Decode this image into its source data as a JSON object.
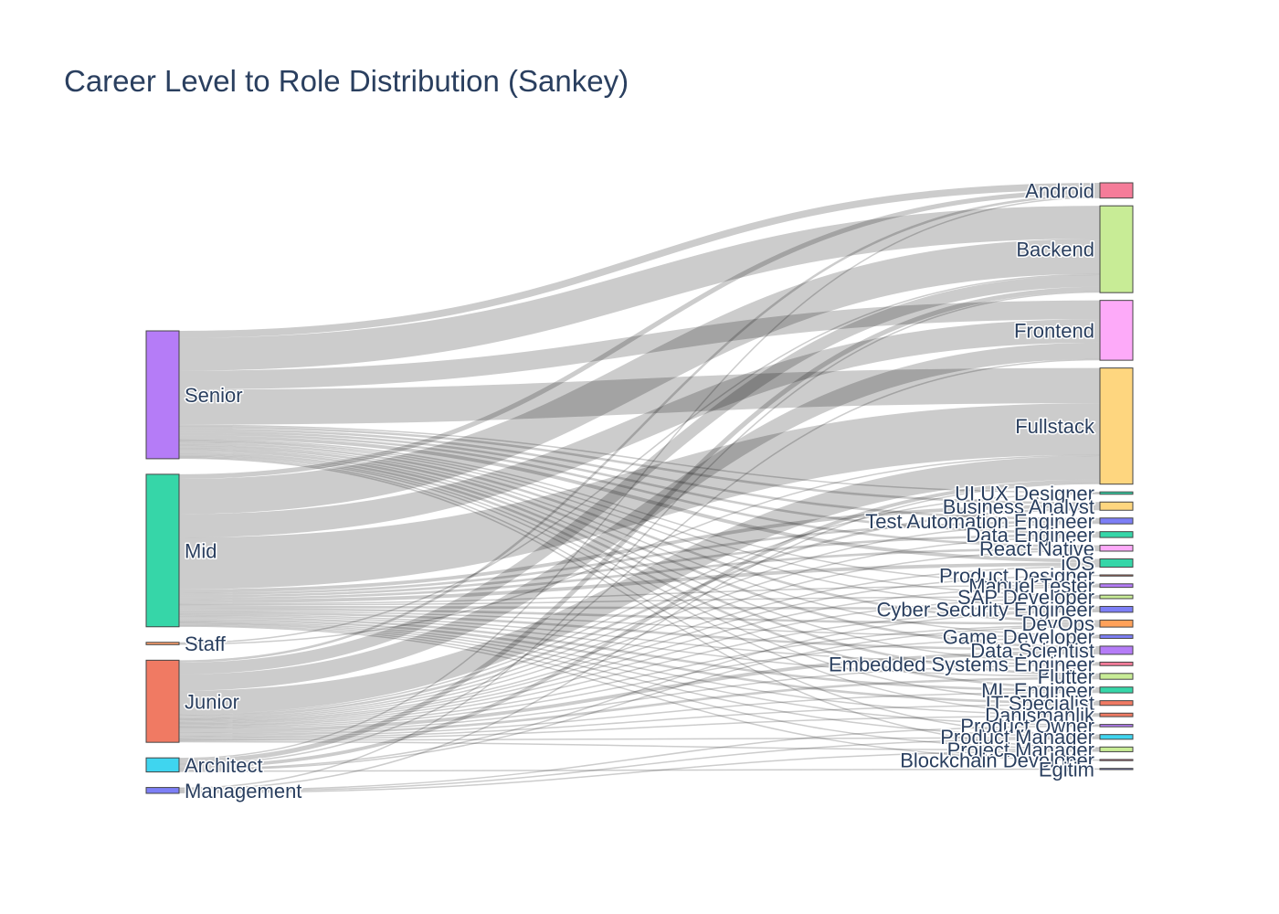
{
  "chart_data": {
    "type": "sankey",
    "title": "Career Level to Role Distribution (Sankey)",
    "sources": [
      {
        "name": "Senior",
        "color": "#b57cf7"
      },
      {
        "name": "Mid",
        "color": "#36d6a8"
      },
      {
        "name": "Staff",
        "color": "#ff9f6b"
      },
      {
        "name": "Junior",
        "color": "#f07a63"
      },
      {
        "name": "Architect",
        "color": "#3fd5ef"
      },
      {
        "name": "Management",
        "color": "#7d7ff6"
      }
    ],
    "targets": [
      {
        "name": "Android",
        "color": "#f57c99"
      },
      {
        "name": "Backend",
        "color": "#c8ec96"
      },
      {
        "name": "Frontend",
        "color": "#fdaaf9"
      },
      {
        "name": "Fullstack",
        "color": "#fed67f"
      },
      {
        "name": "UI UX Designer",
        "color": "#36d6a8"
      },
      {
        "name": "Business Analyst",
        "color": "#fed67f"
      },
      {
        "name": "Test Automation Engineer",
        "color": "#7d7ff6"
      },
      {
        "name": "Data Engineer",
        "color": "#36d6a8"
      },
      {
        "name": "React Native",
        "color": "#fdaaf9"
      },
      {
        "name": "iOS",
        "color": "#36d6a8"
      },
      {
        "name": "Product Designer",
        "color": "#f07a63"
      },
      {
        "name": "Manuel Tester",
        "color": "#b57cf7"
      },
      {
        "name": "SAP Developer",
        "color": "#c8ec96"
      },
      {
        "name": "Cyber Security Engineer",
        "color": "#7d7ff6"
      },
      {
        "name": "DevOps",
        "color": "#ffa15a"
      },
      {
        "name": "Game Developer",
        "color": "#7d7ff6"
      },
      {
        "name": "Data Scientist",
        "color": "#b57cf7"
      },
      {
        "name": "Embedded Systems Engineer",
        "color": "#f57c99"
      },
      {
        "name": "Flutter",
        "color": "#c8ec96"
      },
      {
        "name": "ML Engineer",
        "color": "#36d6a8"
      },
      {
        "name": "IT Specialist",
        "color": "#f07a63"
      },
      {
        "name": "Danismanlik",
        "color": "#f07a63"
      },
      {
        "name": "Product Owner",
        "color": "#b57cf7"
      },
      {
        "name": "Product Manager",
        "color": "#3fd5ef"
      },
      {
        "name": "Project Manager",
        "color": "#c8ec96"
      },
      {
        "name": "Blockchain Developer",
        "color": "#f57c99"
      },
      {
        "name": "Egitim",
        "color": "#7d7ff6"
      }
    ],
    "links": [
      {
        "source": "Senior",
        "target": "Android",
        "value": 6
      },
      {
        "source": "Senior",
        "target": "Backend",
        "value": 28
      },
      {
        "source": "Senior",
        "target": "Frontend",
        "value": 16
      },
      {
        "source": "Senior",
        "target": "Fullstack",
        "value": 30
      },
      {
        "source": "Senior",
        "target": "UI UX Designer",
        "value": 1
      },
      {
        "source": "Senior",
        "target": "Business Analyst",
        "value": 2
      },
      {
        "source": "Senior",
        "target": "Test Automation Engineer",
        "value": 2
      },
      {
        "source": "Senior",
        "target": "Data Engineer",
        "value": 2
      },
      {
        "source": "Senior",
        "target": "React Native",
        "value": 2
      },
      {
        "source": "Senior",
        "target": "iOS",
        "value": 3
      },
      {
        "source": "Senior",
        "target": "Manuel Tester",
        "value": 1
      },
      {
        "source": "Senior",
        "target": "SAP Developer",
        "value": 1
      },
      {
        "source": "Senior",
        "target": "Cyber Security Engineer",
        "value": 1
      },
      {
        "source": "Senior",
        "target": "DevOps",
        "value": 2
      },
      {
        "source": "Senior",
        "target": "Game Developer",
        "value": 1
      },
      {
        "source": "Senior",
        "target": "Data Scientist",
        "value": 2
      },
      {
        "source": "Senior",
        "target": "Embedded Systems Engineer",
        "value": 1
      },
      {
        "source": "Senior",
        "target": "Flutter",
        "value": 2
      },
      {
        "source": "Senior",
        "target": "ML Engineer",
        "value": 2
      },
      {
        "source": "Senior",
        "target": "IT Specialist",
        "value": 1
      },
      {
        "source": "Senior",
        "target": "Danismanlik",
        "value": 1
      },
      {
        "source": "Senior",
        "target": "Product Manager",
        "value": 1
      },
      {
        "source": "Senior",
        "target": "Project Manager",
        "value": 1
      },
      {
        "source": "Mid",
        "target": "Android",
        "value": 4
      },
      {
        "source": "Mid",
        "target": "Backend",
        "value": 30
      },
      {
        "source": "Mid",
        "target": "Frontend",
        "value": 20
      },
      {
        "source": "Mid",
        "target": "Fullstack",
        "value": 44
      },
      {
        "source": "Mid",
        "target": "Business Analyst",
        "value": 3
      },
      {
        "source": "Mid",
        "target": "Test Automation Engineer",
        "value": 2
      },
      {
        "source": "Mid",
        "target": "Data Engineer",
        "value": 2
      },
      {
        "source": "Mid",
        "target": "React Native",
        "value": 2
      },
      {
        "source": "Mid",
        "target": "iOS",
        "value": 3
      },
      {
        "source": "Mid",
        "target": "Manuel Tester",
        "value": 1
      },
      {
        "source": "Mid",
        "target": "SAP Developer",
        "value": 1
      },
      {
        "source": "Mid",
        "target": "Cyber Security Engineer",
        "value": 2
      },
      {
        "source": "Mid",
        "target": "DevOps",
        "value": 2
      },
      {
        "source": "Mid",
        "target": "Game Developer",
        "value": 1
      },
      {
        "source": "Mid",
        "target": "Data Scientist",
        "value": 2
      },
      {
        "source": "Mid",
        "target": "Embedded Systems Engineer",
        "value": 1
      },
      {
        "source": "Mid",
        "target": "Flutter",
        "value": 1
      },
      {
        "source": "Mid",
        "target": "ML Engineer",
        "value": 2
      },
      {
        "source": "Mid",
        "target": "IT Specialist",
        "value": 2
      },
      {
        "source": "Mid",
        "target": "Danismanlik",
        "value": 1
      },
      {
        "source": "Mid",
        "target": "Product Owner",
        "value": 1
      },
      {
        "source": "Mid",
        "target": "Product Manager",
        "value": 1
      },
      {
        "source": "Mid",
        "target": "Project Manager",
        "value": 1
      },
      {
        "source": "Mid",
        "target": "Blockchain Developer",
        "value": 1
      },
      {
        "source": "Staff",
        "target": "Backend",
        "value": 1
      },
      {
        "source": "Staff",
        "target": "Fullstack",
        "value": 1
      },
      {
        "source": "Junior",
        "target": "Android",
        "value": 2
      },
      {
        "source": "Junior",
        "target": "Backend",
        "value": 10
      },
      {
        "source": "Junior",
        "target": "Frontend",
        "value": 14
      },
      {
        "source": "Junior",
        "target": "Fullstack",
        "value": 20
      },
      {
        "source": "Junior",
        "target": "UI UX Designer",
        "value": 1
      },
      {
        "source": "Junior",
        "target": "Business Analyst",
        "value": 2
      },
      {
        "source": "Junior",
        "target": "Test Automation Engineer",
        "value": 1
      },
      {
        "source": "Junior",
        "target": "Data Engineer",
        "value": 1
      },
      {
        "source": "Junior",
        "target": "React Native",
        "value": 1
      },
      {
        "source": "Junior",
        "target": "iOS",
        "value": 1
      },
      {
        "source": "Junior",
        "target": "Product Designer",
        "value": 1
      },
      {
        "source": "Junior",
        "target": "Manuel Tester",
        "value": 1
      },
      {
        "source": "Junior",
        "target": "SAP Developer",
        "value": 1
      },
      {
        "source": "Junior",
        "target": "Cyber Security Engineer",
        "value": 1
      },
      {
        "source": "Junior",
        "target": "DevOps",
        "value": 1
      },
      {
        "source": "Junior",
        "target": "Game Developer",
        "value": 1
      },
      {
        "source": "Junior",
        "target": "Data Scientist",
        "value": 3
      },
      {
        "source": "Junior",
        "target": "Embedded Systems Engineer",
        "value": 1
      },
      {
        "source": "Junior",
        "target": "Flutter",
        "value": 2
      },
      {
        "source": "Junior",
        "target": "ML Engineer",
        "value": 1
      },
      {
        "source": "Junior",
        "target": "IT Specialist",
        "value": 1
      },
      {
        "source": "Junior",
        "target": "Danismanlik",
        "value": 1
      },
      {
        "source": "Junior",
        "target": "Product Manager",
        "value": 1
      },
      {
        "source": "Junior",
        "target": "Project Manager",
        "value": 1
      },
      {
        "source": "Architect",
        "target": "Android",
        "value": 1
      },
      {
        "source": "Architect",
        "target": "Backend",
        "value": 4
      },
      {
        "source": "Architect",
        "target": "Frontend",
        "value": 1
      },
      {
        "source": "Architect",
        "target": "Fullstack",
        "value": 3
      },
      {
        "source": "Architect",
        "target": "DevOps",
        "value": 1
      },
      {
        "source": "Architect",
        "target": "Cyber Security Engineer",
        "value": 1
      },
      {
        "source": "Architect",
        "target": "Egitim",
        "value": 1
      },
      {
        "source": "Management",
        "target": "Backend",
        "value": 1
      },
      {
        "source": "Management",
        "target": "Fullstack",
        "value": 1
      },
      {
        "source": "Management",
        "target": "Product Owner",
        "value": 1
      },
      {
        "source": "Management",
        "target": "Product Manager",
        "value": 1
      },
      {
        "source": "Management",
        "target": "Project Manager",
        "value": 1
      }
    ]
  }
}
